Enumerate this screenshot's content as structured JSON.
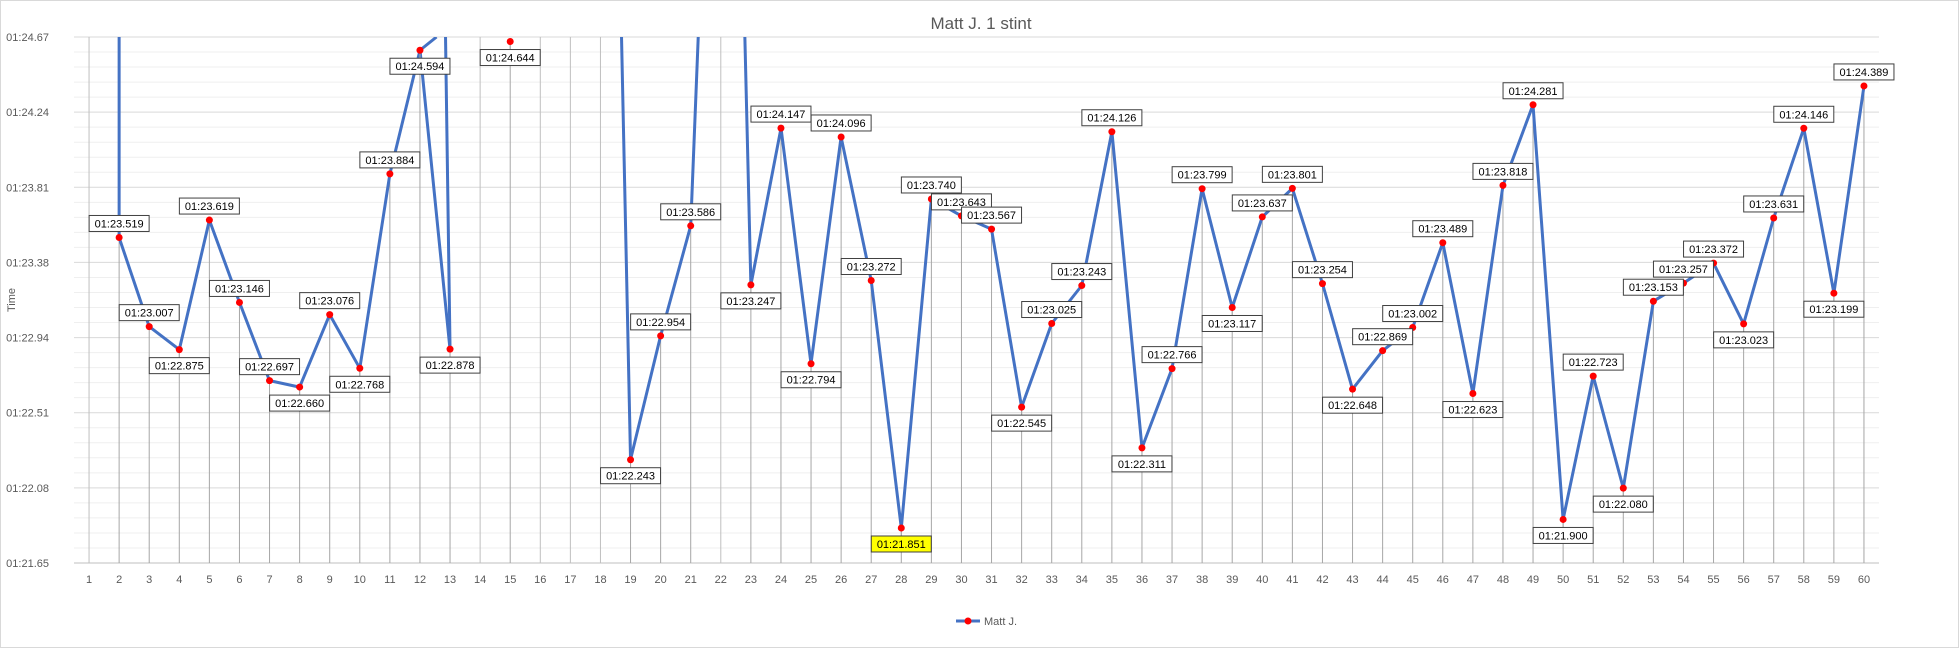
{
  "chart_data": {
    "type": "line",
    "title": "Matt J. 1 stint",
    "xlabel": "",
    "ylabel": "Time",
    "categories": [
      "1",
      "2",
      "3",
      "4",
      "5",
      "6",
      "7",
      "8",
      "9",
      "10",
      "11",
      "12",
      "13",
      "14",
      "15",
      "16",
      "17",
      "18",
      "19",
      "20",
      "21",
      "22",
      "23",
      "24",
      "25",
      "26",
      "27",
      "28",
      "29",
      "30",
      "31",
      "32",
      "33",
      "34",
      "35",
      "36",
      "37",
      "38",
      "39",
      "40",
      "41",
      "42",
      "43",
      "44",
      "45",
      "46",
      "47",
      "48",
      "49",
      "50",
      "51",
      "52",
      "53",
      "54",
      "55",
      "56",
      "57",
      "58",
      "59",
      "60"
    ],
    "y_ticks": [
      "01:21.65",
      "01:22.08",
      "01:22.51",
      "01:22.94",
      "01:23.38",
      "01:23.81",
      "01:24.24",
      "01:24.67"
    ],
    "ylim": [
      81.65,
      84.67
    ],
    "grid": true,
    "legend_position": "bottom",
    "series": [
      {
        "name": "Matt J.",
        "color": "#4472C4",
        "marker_color": "#FF0000",
        "values": [
          null,
          83.519,
          83.007,
          82.875,
          83.619,
          83.146,
          82.697,
          82.66,
          83.076,
          82.768,
          83.884,
          84.594,
          82.878,
          null,
          84.644,
          null,
          null,
          null,
          82.243,
          82.954,
          83.586,
          null,
          83.247,
          84.147,
          82.794,
          84.096,
          83.272,
          81.851,
          83.74,
          83.643,
          83.567,
          82.545,
          83.025,
          83.243,
          84.126,
          82.311,
          82.766,
          83.799,
          83.117,
          83.637,
          83.801,
          83.254,
          82.648,
          82.869,
          83.002,
          83.489,
          82.623,
          83.818,
          84.281,
          81.9,
          82.723,
          82.08,
          83.153,
          83.257,
          83.372,
          83.023,
          83.631,
          84.146,
          83.199,
          84.389
        ],
        "labels": [
          "",
          "01:23.519",
          "01:23.007",
          "01:22.875",
          "01:23.619",
          "01:23.146",
          "01:22.697",
          "01:22.660",
          "01:23.076",
          "01:22.768",
          "01:23.884",
          "01:24.594",
          "01:22.878",
          "",
          "01:24.644",
          "",
          "",
          "",
          "01:22.243",
          "01:22.954",
          "01:23.586",
          "",
          "01:23.247",
          "01:24.147",
          "01:22.794",
          "01:24.096",
          "01:23.272",
          "01:21.851",
          "01:23.740",
          "01:23.643",
          "01:23.567",
          "01:22.545",
          "01:23.025",
          "01:23.243",
          "01:24.126",
          "01:22.311",
          "01:22.766",
          "01:23.799",
          "01:23.117",
          "01:23.637",
          "01:23.801",
          "01:23.254",
          "01:22.648",
          "01:22.869",
          "01:23.002",
          "01:23.489",
          "01:22.623",
          "01:23.818",
          "01:24.281",
          "01:21.900",
          "01:22.723",
          "01:22.080",
          "01:23.153",
          "01:23.257",
          "01:23.372",
          "01:23.023",
          "01:23.631",
          "01:24.146",
          "01:23.199",
          "01:24.389"
        ],
        "highlight_index": 27,
        "highlight_color": "#FFFF00",
        "highlight_text_color": "#C00000"
      }
    ]
  }
}
